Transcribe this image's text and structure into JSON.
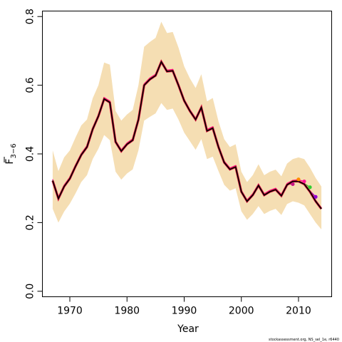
{
  "chart_data": {
    "type": "line",
    "xlabel": "Year",
    "ylabel_main": "F",
    "ylabel_sub": "3−6",
    "xlim": [
      1967,
      2014
    ],
    "ylim": [
      0,
      0.8
    ],
    "xticks": [
      1970,
      1980,
      1990,
      2000,
      2010
    ],
    "yticks": [
      "0.0",
      "0.2",
      "0.4",
      "0.6",
      "0.8"
    ],
    "credit": "stockassessment.org, NS_sel_1e, r6440",
    "colors": {
      "ci_band": "#f5deb3",
      "estimate": "#000000",
      "retro": "#dc143c"
    },
    "x": [
      1967,
      1968,
      1969,
      1970,
      1971,
      1972,
      1973,
      1974,
      1975,
      1976,
      1977,
      1978,
      1979,
      1980,
      1981,
      1982,
      1983,
      1984,
      1985,
      1986,
      1987,
      1988,
      1989,
      1990,
      1991,
      1992,
      1993,
      1994,
      1995,
      1996,
      1997,
      1998,
      1999,
      2000,
      2001,
      2002,
      2003,
      2004,
      2005,
      2006,
      2007,
      2008,
      2009,
      2010,
      2011,
      2012,
      2013,
      2014
    ],
    "series": [
      {
        "values": [
          0.322,
          0.27,
          0.305,
          0.328,
          0.364,
          0.397,
          0.42,
          0.472,
          0.51,
          0.56,
          0.55,
          0.435,
          0.408,
          0.428,
          0.44,
          0.5,
          0.6,
          0.617,
          0.628,
          0.668,
          0.64,
          0.642,
          0.6,
          0.555,
          0.525,
          0.5,
          0.535,
          0.467,
          0.475,
          0.42,
          0.375,
          0.355,
          0.362,
          0.29,
          0.262,
          0.28,
          0.308,
          0.28,
          0.29,
          0.296,
          0.278,
          0.31,
          0.32,
          0.32,
          0.312,
          0.29,
          0.262,
          0.24
        ],
        "lower": [
          0.24,
          0.2,
          0.232,
          0.255,
          0.285,
          0.318,
          0.338,
          0.385,
          0.415,
          0.455,
          0.44,
          0.348,
          0.325,
          0.343,
          0.355,
          0.41,
          0.497,
          0.508,
          0.518,
          0.548,
          0.528,
          0.532,
          0.5,
          0.462,
          0.437,
          0.412,
          0.443,
          0.385,
          0.392,
          0.35,
          0.31,
          0.293,
          0.3,
          0.233,
          0.208,
          0.225,
          0.248,
          0.225,
          0.234,
          0.24,
          0.222,
          0.254,
          0.262,
          0.258,
          0.25,
          0.225,
          0.2,
          0.18
        ],
        "upper": [
          0.41,
          0.35,
          0.39,
          0.41,
          0.448,
          0.483,
          0.5,
          0.562,
          0.6,
          0.666,
          0.66,
          0.525,
          0.497,
          0.515,
          0.528,
          0.6,
          0.712,
          0.726,
          0.738,
          0.785,
          0.752,
          0.755,
          0.71,
          0.655,
          0.62,
          0.592,
          0.632,
          0.553,
          0.563,
          0.495,
          0.443,
          0.42,
          0.428,
          0.348,
          0.318,
          0.338,
          0.37,
          0.338,
          0.348,
          0.354,
          0.335,
          0.372,
          0.385,
          0.39,
          0.385,
          0.36,
          0.33,
          0.305
        ]
      }
    ],
    "retrospective": [
      {
        "end_year": 2009,
        "end_value": 0.312,
        "color": "#c71585",
        "values": [
          0.324,
          0.272,
          0.307,
          0.33,
          0.366,
          0.399,
          0.422,
          0.474,
          0.512,
          0.562,
          0.552,
          0.437,
          0.41,
          0.43,
          0.442,
          0.502,
          0.602,
          0.619,
          0.63,
          0.67,
          0.642,
          0.644,
          0.602,
          0.557,
          0.527,
          0.502,
          0.537,
          0.469,
          0.477,
          0.422,
          0.377,
          0.357,
          0.364,
          0.292,
          0.264,
          0.282,
          0.31,
          0.282,
          0.292,
          0.298,
          0.28,
          0.312,
          0.312
        ]
      },
      {
        "end_year": 2010,
        "end_value": 0.326,
        "color": "#ff8c00",
        "values": [
          0.325,
          0.273,
          0.308,
          0.331,
          0.367,
          0.4,
          0.423,
          0.475,
          0.513,
          0.563,
          0.553,
          0.438,
          0.411,
          0.431,
          0.443,
          0.503,
          0.603,
          0.62,
          0.631,
          0.671,
          0.643,
          0.645,
          0.603,
          0.558,
          0.528,
          0.503,
          0.538,
          0.47,
          0.478,
          0.423,
          0.378,
          0.358,
          0.365,
          0.293,
          0.265,
          0.283,
          0.311,
          0.283,
          0.293,
          0.299,
          0.281,
          0.313,
          0.322,
          0.326
        ]
      },
      {
        "end_year": 2011,
        "end_value": 0.32,
        "color": "#ff1493",
        "values": [
          0.326,
          0.274,
          0.309,
          0.332,
          0.368,
          0.401,
          0.424,
          0.476,
          0.514,
          0.564,
          0.554,
          0.439,
          0.412,
          0.432,
          0.444,
          0.504,
          0.604,
          0.621,
          0.632,
          0.672,
          0.644,
          0.646,
          0.604,
          0.559,
          0.529,
          0.504,
          0.539,
          0.471,
          0.479,
          0.424,
          0.379,
          0.359,
          0.366,
          0.294,
          0.266,
          0.284,
          0.312,
          0.284,
          0.294,
          0.3,
          0.282,
          0.314,
          0.323,
          0.324,
          0.32
        ]
      },
      {
        "end_year": 2012,
        "end_value": 0.303,
        "color": "#32cd32",
        "values": [
          0.323,
          0.271,
          0.306,
          0.329,
          0.365,
          0.398,
          0.421,
          0.473,
          0.511,
          0.561,
          0.551,
          0.436,
          0.409,
          0.429,
          0.441,
          0.501,
          0.601,
          0.618,
          0.629,
          0.669,
          0.641,
          0.643,
          0.601,
          0.556,
          0.526,
          0.501,
          0.536,
          0.468,
          0.476,
          0.421,
          0.376,
          0.356,
          0.363,
          0.291,
          0.263,
          0.281,
          0.309,
          0.281,
          0.291,
          0.297,
          0.279,
          0.311,
          0.321,
          0.321,
          0.314,
          0.303
        ]
      },
      {
        "end_year": 2013,
        "end_value": 0.275,
        "color": "#9400d3",
        "values": [
          0.322,
          0.27,
          0.305,
          0.328,
          0.364,
          0.397,
          0.42,
          0.472,
          0.51,
          0.56,
          0.55,
          0.435,
          0.408,
          0.428,
          0.44,
          0.5,
          0.6,
          0.617,
          0.628,
          0.668,
          0.64,
          0.642,
          0.6,
          0.555,
          0.525,
          0.5,
          0.535,
          0.467,
          0.475,
          0.42,
          0.375,
          0.355,
          0.362,
          0.29,
          0.262,
          0.28,
          0.308,
          0.28,
          0.29,
          0.296,
          0.278,
          0.31,
          0.32,
          0.32,
          0.313,
          0.292,
          0.275
        ]
      }
    ]
  }
}
